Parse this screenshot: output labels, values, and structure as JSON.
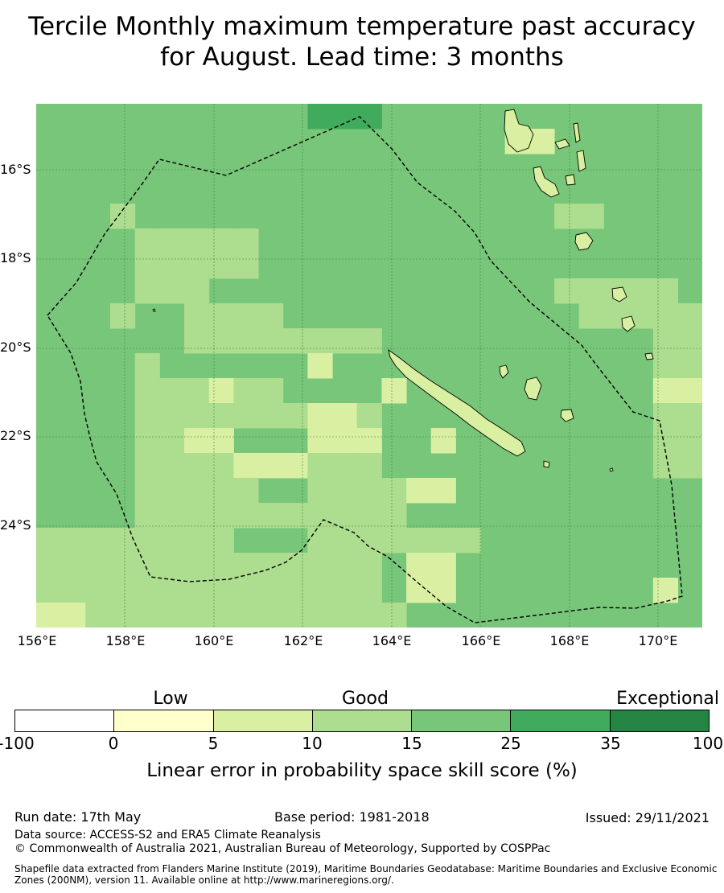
{
  "title": {
    "line1": "Tercile Monthly maximum temperature past accuracy",
    "line2": "for August. Lead time: 3 months"
  },
  "map": {
    "lat_labels": [
      "16°S",
      "18°S",
      "20°S",
      "22°S",
      "24°S"
    ],
    "lon_labels": [
      "156°E",
      "158°E",
      "160°E",
      "162°E",
      "164°E",
      "166°E",
      "168°E",
      "170°E"
    ],
    "features": [
      "eez-boundary-dashed",
      "new-caledonia-coastline",
      "vanuatu-coastline",
      "loyalty-islands-coastline"
    ]
  },
  "colorbar": {
    "categories": [
      "Low",
      "Good",
      "Exceptional"
    ],
    "ticks": [
      "-100",
      "0",
      "5",
      "10",
      "15",
      "25",
      "35",
      "100"
    ],
    "colors": [
      "#ffffff",
      "#ffffcc",
      "#d9f0a3",
      "#addd8e",
      "#78c67a",
      "#41ab5d",
      "#238443"
    ],
    "caption": "Linear error in probability space skill score (%)"
  },
  "footer": {
    "run_date": "Run date: 17th May",
    "base_period": "Base period: 1981-2018",
    "issued": "Issued: 29/11/2021",
    "data_source": "Data source: ACCESS-S2 and ERA5 Climate Reanalysis",
    "copyright": "© Commonwealth of Australia 2021, Australian Bureau of Meteorology, Supported by COSPPac",
    "shapefile": "Shapefile data extracted from Flanders Marine Institute (2019), Maritime Boundaries Geodatabase: Maritime Boundaries and Exclusive Economic Zones (200NM), version 11. Available online at http://www.marineregions.org/."
  }
}
